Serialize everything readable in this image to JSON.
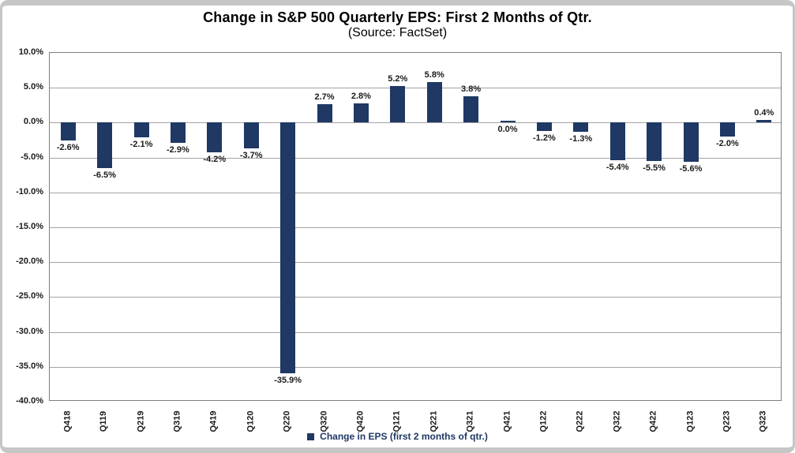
{
  "chart_data": {
    "type": "bar",
    "title": "Change in S&P 500 Quarterly EPS: First 2 Months of Qtr.",
    "subtitle": "(Source: FactSet)",
    "categories": [
      "Q418",
      "Q119",
      "Q219",
      "Q319",
      "Q419",
      "Q120",
      "Q220",
      "Q320",
      "Q420",
      "Q121",
      "Q221",
      "Q321",
      "Q421",
      "Q122",
      "Q222",
      "Q322",
      "Q422",
      "Q123",
      "Q223",
      "Q323"
    ],
    "values": [
      -2.6,
      -6.5,
      -2.1,
      -2.9,
      -4.2,
      -3.7,
      -35.9,
      2.7,
      2.8,
      5.2,
      5.8,
      3.8,
      0.0,
      -1.2,
      -1.3,
      -5.4,
      -5.5,
      -5.6,
      -2.0,
      0.4
    ],
    "value_labels": [
      "-2.6%",
      "-6.5%",
      "-2.1%",
      "-2.9%",
      "-4.2%",
      "-3.7%",
      "-35.9%",
      "2.7%",
      "2.8%",
      "5.2%",
      "5.8%",
      "3.8%",
      "0.0%",
      "-1.2%",
      "-1.3%",
      "-5.4%",
      "-5.5%",
      "-5.6%",
      "-2.0%",
      "0.4%"
    ],
    "ylim": [
      -40,
      10
    ],
    "ytick_step": 5,
    "ytick_labels": [
      "10.0%",
      "5.0%",
      "0.0%",
      "-5.0%",
      "-10.0%",
      "-15.0%",
      "-20.0%",
      "-25.0%",
      "-30.0%",
      "-35.0%",
      "-40.0%"
    ],
    "grid": true,
    "legend": "Change in EPS (first 2 months of qtr.)",
    "legend_position": "bottom",
    "bar_color": "#1f3864",
    "xlabel": "",
    "ylabel": ""
  }
}
